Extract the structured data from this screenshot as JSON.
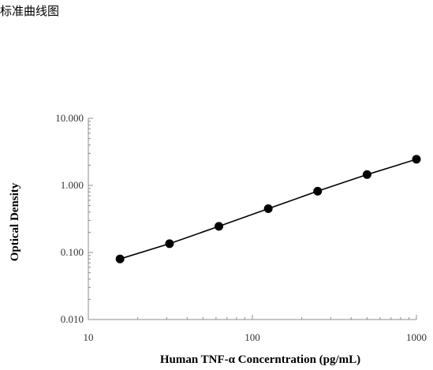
{
  "page": {
    "heading": "标准曲线图"
  },
  "chart_data": {
    "type": "scatter",
    "xscale": "log",
    "yscale": "log",
    "xlim": [
      10,
      1000
    ],
    "ylim": [
      0.01,
      10
    ],
    "xticks": [
      10,
      100,
      1000
    ],
    "xtick_labels": [
      "10",
      "100",
      "1000"
    ],
    "yticks": [
      0.01,
      0.1,
      1,
      10
    ],
    "ytick_labels": [
      "0.010",
      "0.100",
      "1.000",
      "10.000"
    ],
    "xlabel": "Human TNF-α Concerntration (pg/mL)",
    "ylabel": "Optical Density",
    "title": "",
    "grid": false,
    "legend": false,
    "marker_color": "#000000",
    "line_color": "#000000",
    "series": [
      {
        "x": [
          15.6,
          31.25,
          62.5,
          125,
          250,
          500,
          1000
        ],
        "y": [
          0.08,
          0.135,
          0.245,
          0.45,
          0.82,
          1.45,
          2.45
        ]
      }
    ]
  }
}
